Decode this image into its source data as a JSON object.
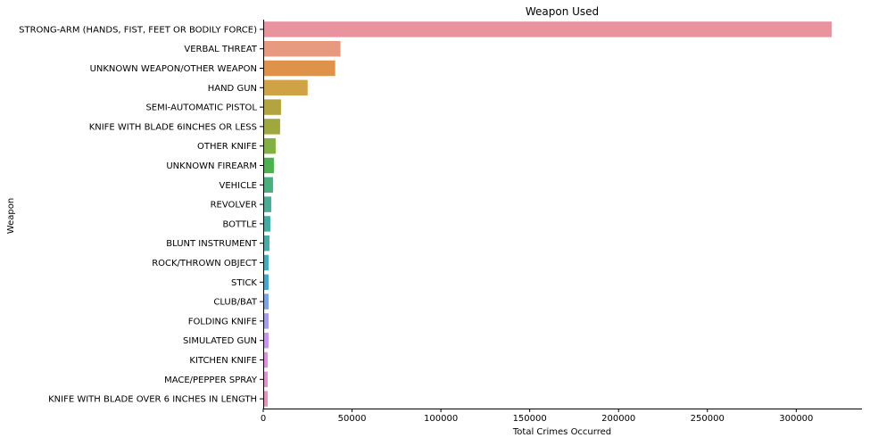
{
  "chart_data": {
    "type": "bar",
    "orientation": "horizontal",
    "title": "Weapon Used",
    "xlabel": "Total Crimes Occurred",
    "ylabel": "Weapon",
    "xlim": [
      0,
      337000
    ],
    "xticks": [
      0,
      50000,
      100000,
      150000,
      200000,
      250000,
      300000
    ],
    "xtick_labels": [
      "0",
      "50000",
      "100000",
      "150000",
      "200000",
      "250000",
      "300000"
    ],
    "grid": false,
    "legend": "none",
    "categories": [
      "STRONG-ARM (HANDS, FIST, FEET OR BODILY FORCE)",
      "VERBAL THREAT",
      "UNKNOWN WEAPON/OTHER WEAPON",
      "HAND GUN",
      "SEMI-AUTOMATIC PISTOL",
      "KNIFE WITH BLADE 6INCHES OR LESS",
      "OTHER KNIFE",
      "UNKNOWN FIREARM",
      "VEHICLE",
      "REVOLVER",
      "BOTTLE",
      "BLUNT INSTRUMENT",
      "ROCK/THROWN OBJECT",
      "STICK",
      "CLUB/BAT",
      "FOLDING KNIFE",
      "SIMULATED GUN",
      "KITCHEN KNIFE",
      "MACE/PEPPER SPRAY",
      "KNIFE WITH BLADE OVER 6 INCHES IN LENGTH"
    ],
    "values": [
      320000,
      43500,
      40500,
      25000,
      10000,
      9500,
      7000,
      6000,
      5500,
      4500,
      4000,
      3500,
      3000,
      3000,
      3000,
      3000,
      3000,
      2500,
      2500,
      2500
    ],
    "colors": [
      "#e9939f",
      "#e89a80",
      "#de924a",
      "#cfa245",
      "#b3a43f",
      "#9fa83f",
      "#82b043",
      "#4fb04f",
      "#48b07c",
      "#47ad93",
      "#45ab9f",
      "#46aba9",
      "#48a9b8",
      "#4aa6c8",
      "#7ea2e3",
      "#a69cec",
      "#c597ea",
      "#e18ee2",
      "#e68fd0",
      "#e892bb"
    ]
  }
}
